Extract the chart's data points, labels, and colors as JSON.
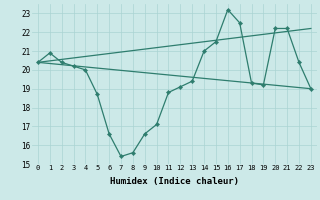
{
  "xlabel": "Humidex (Indice chaleur)",
  "background_color": "#cce9e8",
  "grid_color": "#aad4d3",
  "line_color": "#2e7d6e",
  "xlim": [
    -0.5,
    23.5
  ],
  "ylim": [
    15,
    23.5
  ],
  "yticks": [
    15,
    16,
    17,
    18,
    19,
    20,
    21,
    22,
    23
  ],
  "xticks": [
    0,
    1,
    2,
    3,
    4,
    5,
    6,
    7,
    8,
    9,
    10,
    11,
    12,
    13,
    14,
    15,
    16,
    17,
    18,
    19,
    20,
    21,
    22,
    23
  ],
  "series_main": {
    "x": [
      0,
      1,
      2,
      3,
      4,
      5,
      6,
      7,
      8,
      9,
      10,
      11,
      12,
      13,
      14,
      15,
      16,
      17,
      18,
      19,
      20,
      21,
      22,
      23
    ],
    "y": [
      20.4,
      20.9,
      20.4,
      20.2,
      20.0,
      18.7,
      16.6,
      15.4,
      15.6,
      16.6,
      17.1,
      18.8,
      19.1,
      19.4,
      21.0,
      21.5,
      23.2,
      22.5,
      19.3,
      19.2,
      22.2,
      22.2,
      20.4,
      19.0
    ]
  },
  "series_upper": {
    "x": [
      0,
      23
    ],
    "y": [
      20.4,
      22.2
    ]
  },
  "series_lower": {
    "x": [
      0,
      23
    ],
    "y": [
      20.4,
      19.0
    ]
  }
}
